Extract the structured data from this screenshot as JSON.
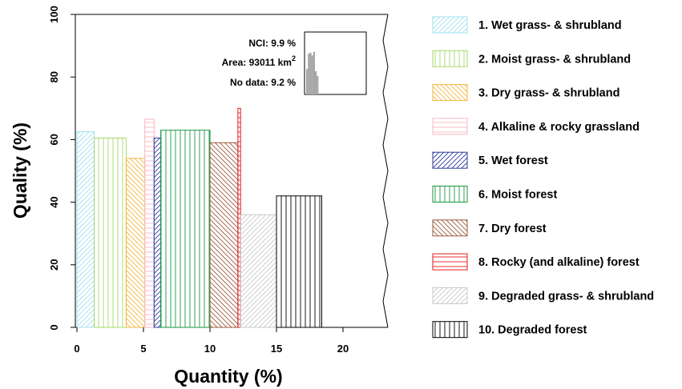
{
  "chart_data": {
    "type": "bar",
    "xlabel": "Quantity (%)",
    "ylabel": "Quality (%)",
    "xlim": [
      0,
      23
    ],
    "ylim": [
      0,
      100
    ],
    "x_ticks": [
      0,
      5,
      10,
      15,
      20
    ],
    "y_ticks": [
      0,
      20,
      40,
      60,
      80,
      100
    ],
    "bars": [
      {
        "name": "1. Wet grass- & shrubland",
        "x_start": 0.0,
        "width": 1.3,
        "value": 62.5,
        "color": "#9fe0ef",
        "hatch": "diag-up"
      },
      {
        "name": "2. Moist grass- & shrubland",
        "x_start": 1.3,
        "width": 2.4,
        "value": 60.5,
        "color": "#a6d96a",
        "hatch": "vertical"
      },
      {
        "name": "3. Dry grass- & shrubland",
        "x_start": 3.7,
        "width": 1.4,
        "value": 54.0,
        "color": "#f4b43e",
        "hatch": "diag-down"
      },
      {
        "name": "4. Alkaline & rocky grassland",
        "x_start": 5.1,
        "width": 0.7,
        "value": 66.5,
        "color": "#f6b7c4",
        "hatch": "horizontal"
      },
      {
        "name": "5. Wet forest",
        "x_start": 5.8,
        "width": 0.5,
        "value": 60.5,
        "color": "#2b3b9a",
        "hatch": "diag-up"
      },
      {
        "name": "6. Moist forest",
        "x_start": 6.3,
        "width": 3.7,
        "value": 63.0,
        "color": "#1a9641",
        "hatch": "vertical"
      },
      {
        "name": "7. Dry forest",
        "x_start": 10.0,
        "width": 2.1,
        "value": 59.0,
        "color": "#9a5a3a",
        "hatch": "diag-down"
      },
      {
        "name": "8. Rocky (and alkaline) forest",
        "x_start": 12.1,
        "width": 0.2,
        "value": 70.0,
        "color": "#e31a1c",
        "hatch": "horizontal"
      },
      {
        "name": "9. Degraded grass- & shrubland",
        "x_start": 12.3,
        "width": 2.7,
        "value": 36.0,
        "color": "#c8c8c8",
        "hatch": "diag-up"
      },
      {
        "name": "10. Degraded forest",
        "x_start": 15.0,
        "width": 3.4,
        "value": 42.0,
        "color": "#000000",
        "hatch": "vertical"
      }
    ],
    "inset": {
      "lines": [
        "NCI: 9.9 %",
        "Area: 93011 km",
        "No data: 9.2 %"
      ],
      "superscript": "2",
      "histogram": [
        55,
        88,
        90,
        84,
        92,
        50,
        40
      ],
      "histogram_color": "#a6a6a6"
    },
    "legend_position": "right",
    "grid": false
  }
}
